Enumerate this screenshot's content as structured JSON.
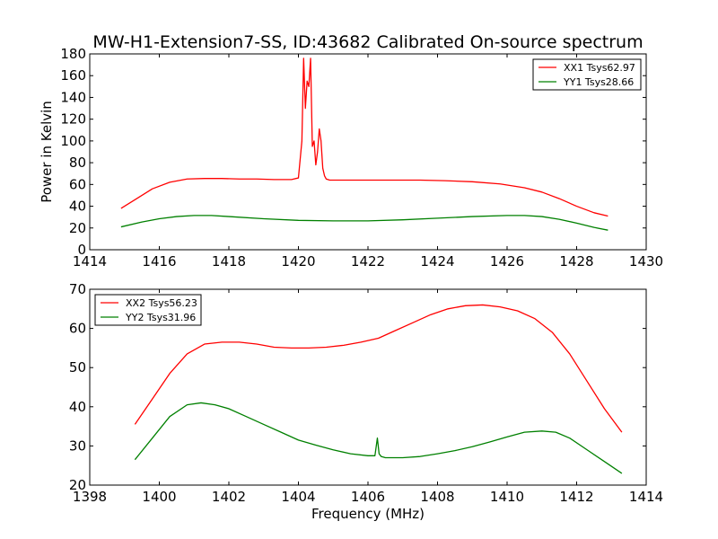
{
  "title": "MW-H1-Extension7-SS, ID:43682 Calibrated On-source spectrum",
  "colors": {
    "xx": "#ff0000",
    "yy": "#008000",
    "axis": "#000000",
    "background": "#ffffff"
  },
  "chart_data": [
    {
      "type": "line",
      "title": "MW-H1-Extension7-SS, ID:43682 Calibrated On-source spectrum",
      "xlabel": "",
      "ylabel": "Power in Kelvin",
      "xlim": [
        1414,
        1430
      ],
      "ylim": [
        0,
        180
      ],
      "xticks": [
        1414,
        1416,
        1418,
        1420,
        1422,
        1424,
        1426,
        1428,
        1430
      ],
      "yticks": [
        0,
        20,
        40,
        60,
        80,
        100,
        120,
        140,
        160,
        180
      ],
      "grid": false,
      "legend_position": "top-right",
      "series": [
        {
          "name": "XX1 Tsys62.97",
          "color": "#ff0000",
          "x": [
            1414.9,
            1415.3,
            1415.8,
            1416.3,
            1416.8,
            1417.3,
            1417.8,
            1418.3,
            1418.8,
            1419.3,
            1419.8,
            1420.0,
            1420.1,
            1420.15,
            1420.2,
            1420.25,
            1420.3,
            1420.35,
            1420.4,
            1420.45,
            1420.5,
            1420.55,
            1420.6,
            1420.65,
            1420.7,
            1420.75,
            1420.8,
            1420.9,
            1421.3,
            1422.0,
            1422.8,
            1423.5,
            1424.2,
            1425.0,
            1425.8,
            1426.5,
            1427.0,
            1427.5,
            1428.0,
            1428.5,
            1428.9
          ],
          "values": [
            38,
            46,
            56,
            62,
            65,
            65.5,
            65.5,
            65,
            65,
            64.5,
            64.5,
            66,
            100,
            176,
            130,
            155,
            150,
            176,
            95,
            100,
            78,
            90,
            111,
            100,
            75,
            68,
            65,
            64,
            64,
            64,
            64,
            64,
            63.5,
            62.5,
            60.5,
            57,
            53,
            47,
            40,
            34,
            31
          ]
        },
        {
          "name": "YY1 Tsys28.66",
          "color": "#008000",
          "x": [
            1414.9,
            1415.5,
            1416.0,
            1416.5,
            1417.0,
            1417.5,
            1418.0,
            1419.0,
            1420.0,
            1421.0,
            1422.0,
            1423.0,
            1424.0,
            1425.0,
            1426.0,
            1426.5,
            1427.0,
            1427.5,
            1428.0,
            1428.5,
            1428.9
          ],
          "values": [
            21,
            25.5,
            28.5,
            30.5,
            31.5,
            31.5,
            30.5,
            28.5,
            27,
            26.5,
            26.5,
            27.5,
            29,
            30.5,
            31.5,
            31.5,
            30.5,
            28,
            24.5,
            20.5,
            18
          ]
        }
      ]
    },
    {
      "type": "line",
      "xlabel": "Frequency (MHz)",
      "ylabel": "",
      "xlim": [
        1398,
        1414
      ],
      "ylim": [
        20,
        70
      ],
      "xticks": [
        1398,
        1400,
        1402,
        1404,
        1406,
        1408,
        1410,
        1412,
        1414
      ],
      "yticks": [
        20,
        30,
        40,
        50,
        60,
        70
      ],
      "grid": false,
      "legend_position": "top-left",
      "series": [
        {
          "name": "XX2 Tsys56.23",
          "color": "#ff0000",
          "x": [
            1399.3,
            1399.8,
            1400.3,
            1400.8,
            1401.3,
            1401.8,
            1402.3,
            1402.8,
            1403.3,
            1403.8,
            1404.3,
            1404.8,
            1405.3,
            1405.8,
            1406.3,
            1406.8,
            1407.3,
            1407.8,
            1408.3,
            1408.8,
            1409.3,
            1409.8,
            1410.3,
            1410.8,
            1411.3,
            1411.8,
            1412.3,
            1412.8,
            1413.3
          ],
          "values": [
            35.5,
            42,
            48.5,
            53.5,
            56,
            56.5,
            56.5,
            56,
            55.2,
            55,
            55,
            55.2,
            55.7,
            56.5,
            57.5,
            59.5,
            61.5,
            63.5,
            65,
            65.8,
            66,
            65.5,
            64.5,
            62.5,
            59,
            53.5,
            46.5,
            39.5,
            33.5
          ]
        },
        {
          "name": "YY2 Tsys31.96",
          "color": "#008000",
          "x": [
            1399.3,
            1399.8,
            1400.3,
            1400.8,
            1401.2,
            1401.6,
            1402.0,
            1402.5,
            1403.0,
            1403.5,
            1404.0,
            1404.5,
            1405.0,
            1405.5,
            1406.0,
            1406.2,
            1406.27,
            1406.32,
            1406.38,
            1406.5,
            1407.0,
            1407.5,
            1408.0,
            1408.5,
            1409.0,
            1409.5,
            1410.0,
            1410.5,
            1411.0,
            1411.4,
            1411.8,
            1412.3,
            1412.8,
            1413.3
          ],
          "values": [
            26.5,
            32,
            37.5,
            40.5,
            41,
            40.5,
            39.5,
            37.5,
            35.5,
            33.5,
            31.5,
            30.2,
            29,
            28,
            27.5,
            27.5,
            32,
            28,
            27.3,
            27,
            27,
            27.3,
            28,
            28.8,
            29.8,
            31,
            32.3,
            33.5,
            33.8,
            33.5,
            32,
            29,
            26,
            23
          ]
        }
      ]
    }
  ]
}
